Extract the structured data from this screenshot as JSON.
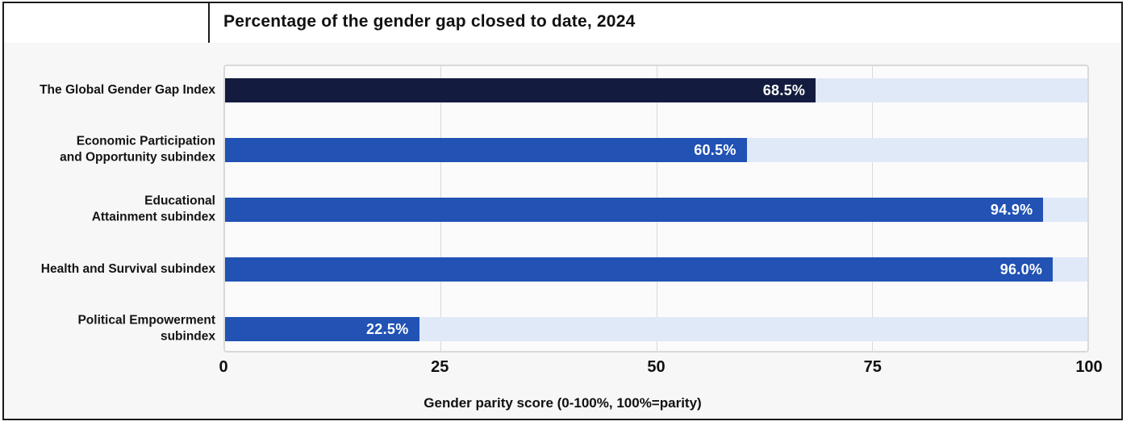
{
  "chart_data": {
    "type": "bar",
    "orientation": "horizontal",
    "title": "Percentage of the gender gap closed to date, 2024",
    "xlabel": "Gender parity score (0-100%, 100%=parity)",
    "xlim": [
      0,
      100
    ],
    "xticks": [
      0,
      25,
      50,
      75,
      100
    ],
    "grid": true,
    "legend": "none",
    "categories": [
      "The Global Gender Gap Index",
      "Economic Participation\nand Opportunity subindex",
      "Educational\nAttainment subindex",
      "Health and Survival subindex",
      "Political Empowerment\nsubindex"
    ],
    "values": [
      68.5,
      60.5,
      94.9,
      96.0,
      22.5
    ],
    "value_labels": [
      "68.5%",
      "60.5%",
      "94.9%",
      "96.0%",
      "22.5%"
    ],
    "bar_colors": [
      "#131b3e",
      "#2152b4",
      "#2152b4",
      "#2152b4",
      "#2152b4"
    ],
    "track_color": "#e0e9f8"
  },
  "colors": {
    "frame_border": "#1a1a1a",
    "canvas_background": "#f7f7f7",
    "plot_background": "#fbfbfb",
    "grid_line": "#d9d9d9",
    "value_text": "#ffffff"
  }
}
